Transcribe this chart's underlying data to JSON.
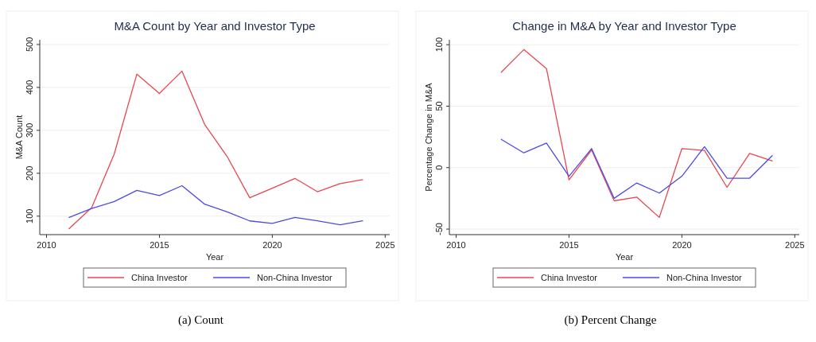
{
  "chart_data": [
    {
      "type": "line",
      "title": "M&A Count by Year and Investor Type",
      "xlabel": "Year",
      "ylabel": "M&A Count",
      "x": [
        2011,
        2012,
        2013,
        2014,
        2015,
        2016,
        2017,
        2018,
        2019,
        2020,
        2021,
        2022,
        2023,
        2024
      ],
      "series": [
        {
          "name": "China Investor",
          "color": "#e8474f",
          "values": [
            71,
            120,
            245,
            431,
            386,
            438,
            314,
            239,
            143,
            165,
            188,
            157,
            176,
            185
          ]
        },
        {
          "name": "Non-China Investor",
          "color": "#4b4be6",
          "values": [
            97,
            118,
            134,
            160,
            148,
            171,
            128,
            110,
            89,
            83,
            97,
            89,
            80,
            89
          ]
        }
      ],
      "xlim": [
        2009.7,
        2025.2
      ],
      "xticks": [
        2010,
        2015,
        2020,
        2025
      ],
      "ylim": [
        57,
        511
      ],
      "yticks": [
        100,
        200,
        300,
        400,
        500
      ],
      "grid": "y",
      "legend": "bottom",
      "annotations": [
        "(a) Count"
      ]
    },
    {
      "type": "line",
      "title": "Change in M&A by Year and Investor Type",
      "xlabel": "Year",
      "ylabel": "Percentage Change in M&A",
      "x": [
        2012,
        2013,
        2014,
        2015,
        2016,
        2017,
        2018,
        2019,
        2020,
        2021,
        2022,
        2023,
        2024
      ],
      "series": [
        {
          "name": "China Investor",
          "color": "#e8474f",
          "values": [
            77.6,
            96,
            80.6,
            -10,
            14.4,
            -27,
            -24,
            -40.5,
            15.5,
            14,
            -16,
            11.6,
            5.4
          ]
        },
        {
          "name": "Non-China Investor",
          "color": "#4b4be6",
          "values": [
            23,
            12,
            20,
            -7,
            15.5,
            -25,
            -12.5,
            -20.7,
            -7,
            17,
            -8.6,
            -8.6,
            9.7
          ]
        }
      ],
      "xlim": [
        2009.7,
        2025.2
      ],
      "xticks": [
        2010,
        2015,
        2020,
        2025
      ],
      "ylim": [
        -54.5,
        104
      ],
      "yticks": [
        -50,
        0,
        50,
        100
      ],
      "grid": "y",
      "legend": "bottom",
      "annotations": [
        "(b) Percent Change"
      ]
    }
  ]
}
